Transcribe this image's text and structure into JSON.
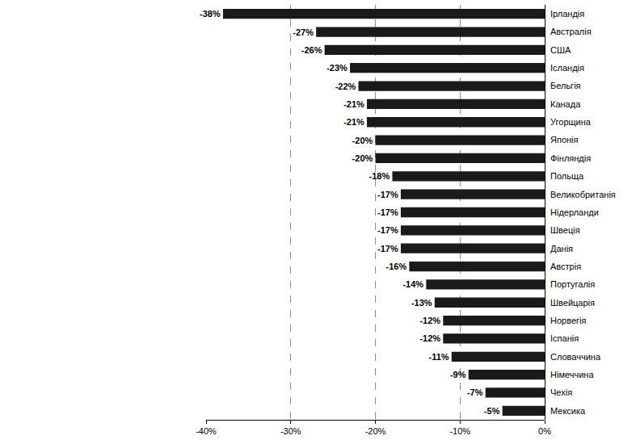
{
  "chart_data": {
    "type": "bar",
    "orientation": "horizontal",
    "categories": [
      "Ірландія",
      "Австралія",
      "США",
      "Ісландія",
      "Бельгія",
      "Канада",
      "Угорщина",
      "Японія",
      "Фінляндія",
      "Польща",
      "Великобританія",
      "Нідерланди",
      "Швеція",
      "Данія",
      "Австрія",
      "Португалія",
      "Швейцарія",
      "Норвегія",
      "Іспанія",
      "Словаччина",
      "Німеччина",
      "Чехія",
      "Мексика"
    ],
    "values": [
      -38,
      -27,
      -26,
      -23,
      -22,
      -21,
      -21,
      -20,
      -20,
      -18,
      -17,
      -17,
      -17,
      -17,
      -16,
      -14,
      -13,
      -12,
      -12,
      -11,
      -9,
      -7,
      -5
    ],
    "value_labels": [
      "-38%",
      "-27%",
      "-26%",
      "-23%",
      "-22%",
      "-21%",
      "-21%",
      "-20%",
      "-20%",
      "-18%",
      "-17%",
      "-17%",
      "-17%",
      "-17%",
      "-16%",
      "-14%",
      "-13%",
      "-12%",
      "-12%",
      "-11%",
      "-9%",
      "-7%",
      "-5%"
    ],
    "color": "#1a1a1a",
    "xlim": [
      -40,
      0
    ],
    "xticks": [
      {
        "value": -40,
        "label": "-40%"
      },
      {
        "value": -30,
        "label": "-30%"
      },
      {
        "value": -20,
        "label": "-20%"
      },
      {
        "value": -10,
        "label": "-10%"
      },
      {
        "value": 0,
        "label": "0%"
      }
    ],
    "grid": true,
    "data_labels": true
  }
}
